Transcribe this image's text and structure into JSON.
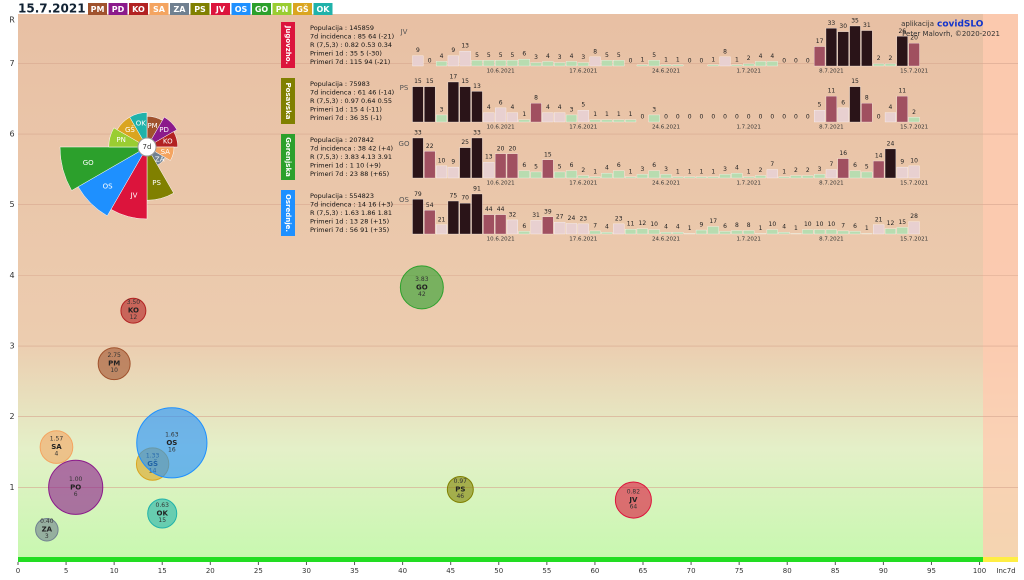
{
  "header": {
    "date": "15.7.2021",
    "app": "aplikacija",
    "brand": "covidSLO",
    "author": "Peter Malovrh, ©2020-2021",
    "tags": [
      {
        "label": "PM",
        "color": "#a0522d"
      },
      {
        "label": "PD",
        "color": "#8b1a8b"
      },
      {
        "label": "KO",
        "color": "#b22222"
      },
      {
        "label": "SA",
        "color": "#f4a460"
      },
      {
        "label": "ZA",
        "color": "#708090"
      },
      {
        "label": "PS",
        "color": "#808000"
      },
      {
        "label": "JV",
        "color": "#dc143c"
      },
      {
        "label": "OS",
        "color": "#1e90ff"
      },
      {
        "label": "GO",
        "color": "#2ca02c"
      },
      {
        "label": "PN",
        "color": "#9acd32"
      },
      {
        "label": "GŠ",
        "color": "#daa520"
      },
      {
        "label": "OK",
        "color": "#20b2aa"
      }
    ]
  },
  "panels": [
    {
      "tag": "Jugovzho.",
      "color": "#dc143c",
      "lines": [
        "Populacija : 145859",
        "7d incidenca : 85 64 (-21)",
        "R (7,5,3) : 0.82 0.53 0.34",
        "Primeri 1d : 35 5 (-30)",
        "Primeri 7d : 115 94 (-21)"
      ]
    },
    {
      "tag": "Posavska",
      "color": "#808000",
      "lines": [
        "Populacija : 75983",
        "7d incidenca : 61 46 (-14)",
        "R (7,5,3) : 0.97 0.64 0.55",
        "Primeri 1d : 15 4 (-11)",
        "Primeri 7d : 36 35 (-1)"
      ]
    },
    {
      "tag": "Gorenjska",
      "color": "#2ca02c",
      "lines": [
        "Populacija : 207842",
        "7d incidenca : 38 42 (+4)",
        "R (7,5,3) : 3.83 4.13 3.91",
        "Primeri 1d : 1 10 (+9)",
        "Primeri 7d : 23 88 (+65)"
      ]
    },
    {
      "tag": "Osrednje.",
      "color": "#1e90ff",
      "lines": [
        "Populacija : 554823",
        "7d incidenca : 14 16 (+3)",
        "R (7,5,3) : 1.63 1.86 1.81",
        "Primeri 1d : 13 28 (+15)",
        "Primeri 7d : 56 91 (+35)"
      ]
    }
  ],
  "chart_data": [
    {
      "type": "bubble",
      "x_label": "Inc7d",
      "y_label": "R",
      "xlim": [
        0,
        104
      ],
      "ylim": [
        0,
        7.6
      ],
      "xticks": [
        0,
        5,
        10,
        15,
        20,
        25,
        30,
        35,
        40,
        45,
        50,
        55,
        60,
        65,
        70,
        75,
        80,
        85,
        90,
        95,
        100
      ],
      "yticks": [
        1,
        2,
        3,
        4,
        5,
        6,
        7
      ],
      "grid": true,
      "series": [
        {
          "name": "KO",
          "color": "#b22222",
          "x": [
            12
          ],
          "values": [
            3.5
          ],
          "value_labels": [
            "3.50"
          ],
          "sizes": [
            70
          ]
        },
        {
          "name": "PM",
          "color": "#a0522d",
          "x": [
            10
          ],
          "values": [
            2.75
          ],
          "value_labels": [
            "2.75"
          ],
          "sizes": [
            115
          ]
        },
        {
          "name": "SA",
          "color": "#f4a460",
          "x": [
            4
          ],
          "values": [
            1.57
          ],
          "value_labels": [
            "1.57"
          ],
          "sizes": [
            120
          ]
        },
        {
          "name": "PO",
          "color": "#8b1a8b",
          "x": [
            6
          ],
          "values": [
            1
          ],
          "value_labels": [
            "1.00"
          ],
          "sizes": [
            330
          ]
        },
        {
          "name": "ZA",
          "color": "#708090",
          "x": [
            3
          ],
          "values": [
            0.4
          ],
          "value_labels": [
            "0.40"
          ],
          "sizes": [
            57
          ]
        },
        {
          "name": "GŠ",
          "color": "#daa520",
          "x": [
            14
          ],
          "values": [
            1.33
          ],
          "value_labels": [
            "1.33"
          ],
          "sizes": [
            118
          ]
        },
        {
          "name": "OS",
          "color": "#1e90ff",
          "x": [
            16
          ],
          "values": [
            1.63
          ],
          "value_labels": [
            "1.63"
          ],
          "sizes": [
            555
          ]
        },
        {
          "name": "OK",
          "color": "#20b2aa",
          "x": [
            15
          ],
          "values": [
            0.63
          ],
          "value_labels": [
            "0.63"
          ],
          "sizes": [
            95
          ]
        },
        {
          "name": "GO",
          "color": "#2ca02c",
          "x": [
            42
          ],
          "values": [
            3.83
          ],
          "value_labels": [
            "3.83"
          ],
          "sizes": [
            208
          ]
        },
        {
          "name": "PS",
          "color": "#808000",
          "x": [
            46
          ],
          "values": [
            0.97
          ],
          "value_labels": [
            "0.97"
          ],
          "sizes": [
            76
          ]
        },
        {
          "name": "JV",
          "color": "#dc143c",
          "x": [
            64
          ],
          "values": [
            0.82
          ],
          "value_labels": [
            "0.82"
          ],
          "sizes": [
            146
          ]
        }
      ]
    },
    {
      "type": "rose",
      "center_label": "7d",
      "categories": [
        "PM",
        "PD",
        "KO",
        "SA",
        "ZA",
        "PS",
        "JV",
        "OS",
        "GO",
        "PN",
        "GŠ",
        "OK"
      ],
      "colors": [
        "#a0522d",
        "#8b1a8b",
        "#b22222",
        "#f4a460",
        "#708090",
        "#808000",
        "#dc143c",
        "#1e90ff",
        "#2ca02c",
        "#9acd32",
        "#daa520",
        "#20b2aa"
      ],
      "values": [
        25,
        30,
        25,
        20,
        12,
        55,
        80,
        90,
        100,
        35,
        30,
        30
      ]
    },
    {
      "type": "bar",
      "name": "JV",
      "categories": [
        null,
        null,
        null,
        null,
        null,
        null,
        null,
        "10.6.2021",
        null,
        null,
        null,
        null,
        null,
        null,
        "17.6.2021",
        null,
        null,
        null,
        null,
        null,
        null,
        "24.6.2021",
        null,
        null,
        null,
        null,
        null,
        null,
        "1.7.2021",
        null,
        null,
        null,
        null,
        null,
        null,
        "8.7.2021",
        null,
        null,
        null,
        null,
        null,
        null,
        "15.7.2021"
      ],
      "values": [
        9,
        0,
        4,
        9,
        13,
        5,
        5,
        5,
        5,
        6,
        3,
        4,
        3,
        4,
        3,
        8,
        5,
        5,
        0,
        1,
        5,
        1,
        1,
        0,
        0,
        1,
        8,
        1,
        2,
        4,
        4,
        0,
        0,
        0,
        17,
        33,
        30,
        35,
        31,
        2,
        2,
        26,
        20
      ]
    },
    {
      "type": "bar",
      "name": "PS",
      "categories": [
        null,
        null,
        null,
        null,
        null,
        null,
        null,
        "10.6.2021",
        null,
        null,
        null,
        null,
        null,
        null,
        "17.6.2021",
        null,
        null,
        null,
        null,
        null,
        null,
        "24.6.2021",
        null,
        null,
        null,
        null,
        null,
        null,
        "1.7.2021",
        null,
        null,
        null,
        null,
        null,
        null,
        "8.7.2021",
        null,
        null,
        null,
        null,
        null,
        null,
        "15.7.2021"
      ],
      "values": [
        15,
        15,
        3,
        17,
        15,
        13,
        4,
        6,
        4,
        1,
        8,
        4,
        4,
        3,
        5,
        1,
        1,
        1,
        1,
        0,
        3,
        0,
        0,
        0,
        0,
        0,
        0,
        0,
        0,
        0,
        0,
        0,
        0,
        0,
        5,
        11,
        6,
        15,
        8,
        0,
        4,
        11,
        2
      ]
    },
    {
      "type": "bar",
      "name": "GO",
      "categories": [
        null,
        null,
        null,
        null,
        null,
        null,
        null,
        "10.6.2021",
        null,
        null,
        null,
        null,
        null,
        null,
        "17.6.2021",
        null,
        null,
        null,
        null,
        null,
        null,
        "24.6.2021",
        null,
        null,
        null,
        null,
        null,
        null,
        "1.7.2021",
        null,
        null,
        null,
        null,
        null,
        null,
        "8.7.2021",
        null,
        null,
        null,
        null,
        null,
        null,
        "15.7.2021"
      ],
      "values": [
        33,
        22,
        10,
        9,
        25,
        33,
        13,
        20,
        20,
        6,
        5,
        15,
        5,
        6,
        2,
        1,
        4,
        6,
        1,
        3,
        6,
        3,
        1,
        1,
        1,
        1,
        3,
        4,
        1,
        2,
        7,
        1,
        2,
        2,
        3,
        7,
        16,
        6,
        5,
        14,
        24,
        9,
        10
      ]
    },
    {
      "type": "bar",
      "name": "OS",
      "categories": [
        null,
        null,
        null,
        null,
        null,
        null,
        null,
        "10.6.2021",
        null,
        null,
        null,
        null,
        null,
        null,
        "17.6.2021",
        null,
        null,
        null,
        null,
        null,
        null,
        "24.6.2021",
        null,
        null,
        null,
        null,
        null,
        null,
        "1.7.2021",
        null,
        null,
        null,
        null,
        null,
        null,
        "8.7.2021",
        null,
        null,
        null,
        null,
        null,
        null,
        "15.7.2021"
      ],
      "values": [
        79,
        54,
        21,
        75,
        70,
        91,
        44,
        44,
        32,
        6,
        31,
        39,
        27,
        24,
        23,
        7,
        4,
        23,
        11,
        12,
        10,
        4,
        4,
        1,
        9,
        17,
        6,
        8,
        8,
        1,
        10,
        4,
        1,
        10,
        10,
        10,
        7,
        6,
        1,
        21,
        12,
        15,
        28
      ]
    }
  ]
}
